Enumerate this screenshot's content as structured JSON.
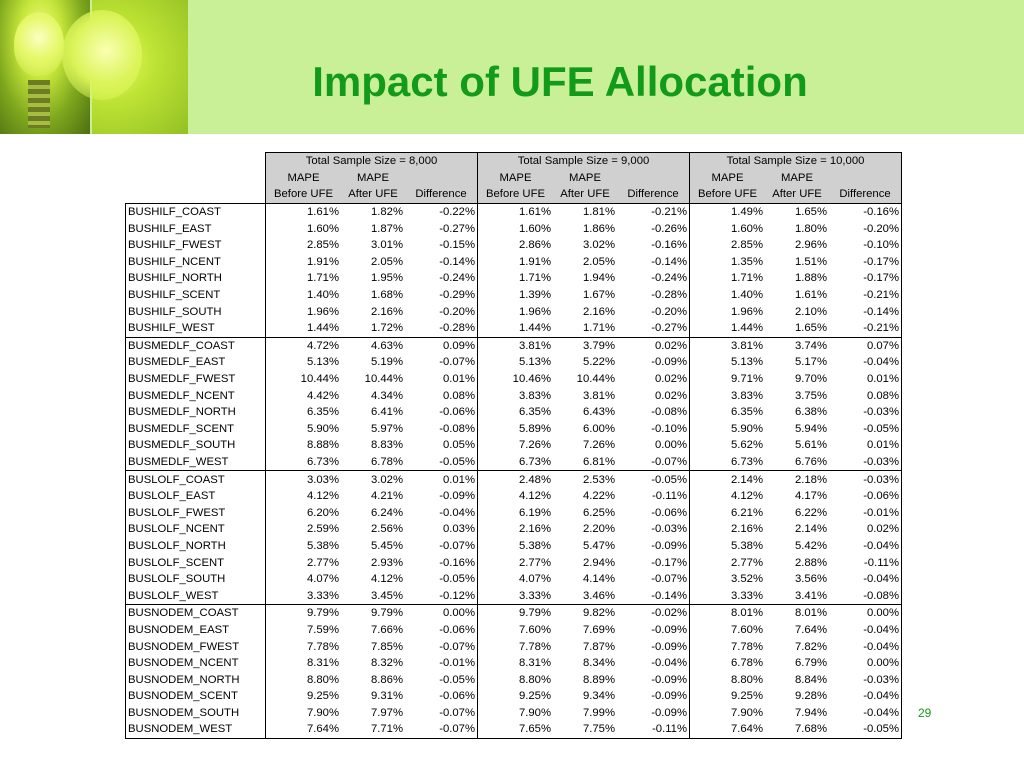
{
  "slide": {
    "title": "Impact of UFE Allocation",
    "page_number": "29"
  },
  "table": {
    "groups": [
      {
        "title": "Total Sample Size = 8,000"
      },
      {
        "title": "Total Sample Size = 9,000"
      },
      {
        "title": "Total Sample Size = 10,000"
      }
    ],
    "subheader_row1": [
      "MAPE",
      "MAPE",
      ""
    ],
    "subheader_row2": [
      "Before UFE",
      "After UFE",
      "Difference"
    ],
    "rows": [
      {
        "label": "BUSHILF_COAST",
        "values": [
          "1.61%",
          "1.82%",
          "-0.22%",
          "1.61%",
          "1.81%",
          "-0.21%",
          "1.49%",
          "1.65%",
          "-0.16%"
        ]
      },
      {
        "label": "BUSHILF_EAST",
        "values": [
          "1.60%",
          "1.87%",
          "-0.27%",
          "1.60%",
          "1.86%",
          "-0.26%",
          "1.60%",
          "1.80%",
          "-0.20%"
        ]
      },
      {
        "label": "BUSHILF_FWEST",
        "values": [
          "2.85%",
          "3.01%",
          "-0.15%",
          "2.86%",
          "3.02%",
          "-0.16%",
          "2.85%",
          "2.96%",
          "-0.10%"
        ]
      },
      {
        "label": "BUSHILF_NCENT",
        "values": [
          "1.91%",
          "2.05%",
          "-0.14%",
          "1.91%",
          "2.05%",
          "-0.14%",
          "1.35%",
          "1.51%",
          "-0.17%"
        ]
      },
      {
        "label": "BUSHILF_NORTH",
        "values": [
          "1.71%",
          "1.95%",
          "-0.24%",
          "1.71%",
          "1.94%",
          "-0.24%",
          "1.71%",
          "1.88%",
          "-0.17%"
        ]
      },
      {
        "label": "BUSHILF_SCENT",
        "values": [
          "1.40%",
          "1.68%",
          "-0.29%",
          "1.39%",
          "1.67%",
          "-0.28%",
          "1.40%",
          "1.61%",
          "-0.21%"
        ]
      },
      {
        "label": "BUSHILF_SOUTH",
        "values": [
          "1.96%",
          "2.16%",
          "-0.20%",
          "1.96%",
          "2.16%",
          "-0.20%",
          "1.96%",
          "2.10%",
          "-0.14%"
        ]
      },
      {
        "label": "BUSHILF_WEST",
        "values": [
          "1.44%",
          "1.72%",
          "-0.28%",
          "1.44%",
          "1.71%",
          "-0.27%",
          "1.44%",
          "1.65%",
          "-0.21%"
        ]
      },
      {
        "label": "BUSMEDLF_COAST",
        "values": [
          "4.72%",
          "4.63%",
          "0.09%",
          "3.81%",
          "3.79%",
          "0.02%",
          "3.81%",
          "3.74%",
          "0.07%"
        ]
      },
      {
        "label": "BUSMEDLF_EAST",
        "values": [
          "5.13%",
          "5.19%",
          "-0.07%",
          "5.13%",
          "5.22%",
          "-0.09%",
          "5.13%",
          "5.17%",
          "-0.04%"
        ]
      },
      {
        "label": "BUSMEDLF_FWEST",
        "values": [
          "10.44%",
          "10.44%",
          "0.01%",
          "10.46%",
          "10.44%",
          "0.02%",
          "9.71%",
          "9.70%",
          "0.01%"
        ]
      },
      {
        "label": "BUSMEDLF_NCENT",
        "values": [
          "4.42%",
          "4.34%",
          "0.08%",
          "3.83%",
          "3.81%",
          "0.02%",
          "3.83%",
          "3.75%",
          "0.08%"
        ]
      },
      {
        "label": "BUSMEDLF_NORTH",
        "values": [
          "6.35%",
          "6.41%",
          "-0.06%",
          "6.35%",
          "6.43%",
          "-0.08%",
          "6.35%",
          "6.38%",
          "-0.03%"
        ]
      },
      {
        "label": "BUSMEDLF_SCENT",
        "values": [
          "5.90%",
          "5.97%",
          "-0.08%",
          "5.89%",
          "6.00%",
          "-0.10%",
          "5.90%",
          "5.94%",
          "-0.05%"
        ]
      },
      {
        "label": "BUSMEDLF_SOUTH",
        "values": [
          "8.88%",
          "8.83%",
          "0.05%",
          "7.26%",
          "7.26%",
          "0.00%",
          "5.62%",
          "5.61%",
          "0.01%"
        ]
      },
      {
        "label": "BUSMEDLF_WEST",
        "values": [
          "6.73%",
          "6.78%",
          "-0.05%",
          "6.73%",
          "6.81%",
          "-0.07%",
          "6.73%",
          "6.76%",
          "-0.03%"
        ]
      },
      {
        "label": "BUSLOLF_COAST",
        "values": [
          "3.03%",
          "3.02%",
          "0.01%",
          "2.48%",
          "2.53%",
          "-0.05%",
          "2.14%",
          "2.18%",
          "-0.03%"
        ]
      },
      {
        "label": "BUSLOLF_EAST",
        "values": [
          "4.12%",
          "4.21%",
          "-0.09%",
          "4.12%",
          "4.22%",
          "-0.11%",
          "4.12%",
          "4.17%",
          "-0.06%"
        ]
      },
      {
        "label": "BUSLOLF_FWEST",
        "values": [
          "6.20%",
          "6.24%",
          "-0.04%",
          "6.19%",
          "6.25%",
          "-0.06%",
          "6.21%",
          "6.22%",
          "-0.01%"
        ]
      },
      {
        "label": "BUSLOLF_NCENT",
        "values": [
          "2.59%",
          "2.56%",
          "0.03%",
          "2.16%",
          "2.20%",
          "-0.03%",
          "2.16%",
          "2.14%",
          "0.02%"
        ]
      },
      {
        "label": "BUSLOLF_NORTH",
        "values": [
          "5.38%",
          "5.45%",
          "-0.07%",
          "5.38%",
          "5.47%",
          "-0.09%",
          "5.38%",
          "5.42%",
          "-0.04%"
        ]
      },
      {
        "label": "BUSLOLF_SCENT",
        "values": [
          "2.77%",
          "2.93%",
          "-0.16%",
          "2.77%",
          "2.94%",
          "-0.17%",
          "2.77%",
          "2.88%",
          "-0.11%"
        ]
      },
      {
        "label": "BUSLOLF_SOUTH",
        "values": [
          "4.07%",
          "4.12%",
          "-0.05%",
          "4.07%",
          "4.14%",
          "-0.07%",
          "3.52%",
          "3.56%",
          "-0.04%"
        ]
      },
      {
        "label": "BUSLOLF_WEST",
        "values": [
          "3.33%",
          "3.45%",
          "-0.12%",
          "3.33%",
          "3.46%",
          "-0.14%",
          "3.33%",
          "3.41%",
          "-0.08%"
        ]
      },
      {
        "label": "BUSNODEM_COAST",
        "values": [
          "9.79%",
          "9.79%",
          "0.00%",
          "9.79%",
          "9.82%",
          "-0.02%",
          "8.01%",
          "8.01%",
          "0.00%"
        ]
      },
      {
        "label": "BUSNODEM_EAST",
        "values": [
          "7.59%",
          "7.66%",
          "-0.06%",
          "7.60%",
          "7.69%",
          "-0.09%",
          "7.60%",
          "7.64%",
          "-0.04%"
        ]
      },
      {
        "label": "BUSNODEM_FWEST",
        "values": [
          "7.78%",
          "7.85%",
          "-0.07%",
          "7.78%",
          "7.87%",
          "-0.09%",
          "7.78%",
          "7.82%",
          "-0.04%"
        ]
      },
      {
        "label": "BUSNODEM_NCENT",
        "values": [
          "8.31%",
          "8.32%",
          "-0.01%",
          "8.31%",
          "8.34%",
          "-0.04%",
          "6.78%",
          "6.79%",
          "0.00%"
        ]
      },
      {
        "label": "BUSNODEM_NORTH",
        "values": [
          "8.80%",
          "8.86%",
          "-0.05%",
          "8.80%",
          "8.89%",
          "-0.09%",
          "8.80%",
          "8.84%",
          "-0.03%"
        ]
      },
      {
        "label": "BUSNODEM_SCENT",
        "values": [
          "9.25%",
          "9.31%",
          "-0.06%",
          "9.25%",
          "9.34%",
          "-0.09%",
          "9.25%",
          "9.28%",
          "-0.04%"
        ]
      },
      {
        "label": "BUSNODEM_SOUTH",
        "values": [
          "7.90%",
          "7.97%",
          "-0.07%",
          "7.90%",
          "7.99%",
          "-0.09%",
          "7.90%",
          "7.94%",
          "-0.04%"
        ]
      },
      {
        "label": "BUSNODEM_WEST",
        "values": [
          "7.64%",
          "7.71%",
          "-0.07%",
          "7.65%",
          "7.75%",
          "-0.11%",
          "7.64%",
          "7.68%",
          "-0.05%"
        ]
      }
    ]
  }
}
